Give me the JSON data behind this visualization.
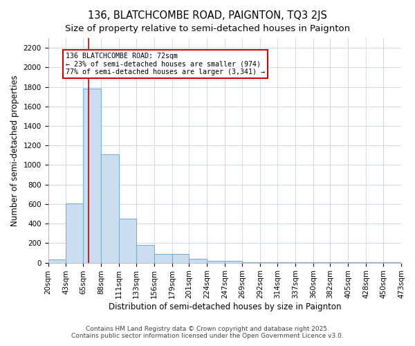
{
  "title": "136, BLATCHCOMBE ROAD, PAIGNTON, TQ3 2JS",
  "subtitle": "Size of property relative to semi-detached houses in Paignton",
  "xlabel": "Distribution of semi-detached houses by size in Paignton",
  "ylabel": "Number of semi-detached properties",
  "bin_labels": [
    "20sqm",
    "43sqm",
    "65sqm",
    "88sqm",
    "111sqm",
    "133sqm",
    "156sqm",
    "179sqm",
    "201sqm",
    "224sqm",
    "247sqm",
    "269sqm",
    "292sqm",
    "314sqm",
    "337sqm",
    "360sqm",
    "382sqm",
    "405sqm",
    "428sqm",
    "450sqm",
    "473sqm"
  ],
  "bar_values": [
    30,
    610,
    1780,
    1110,
    450,
    180,
    90,
    90,
    40,
    20,
    20,
    5,
    5,
    5,
    3,
    2,
    2,
    2,
    2,
    2
  ],
  "bar_color": "#ccddf0",
  "bar_edge_color": "#7aadd4",
  "ylim": [
    0,
    2300
  ],
  "yticks": [
    0,
    200,
    400,
    600,
    800,
    1000,
    1200,
    1400,
    1600,
    1800,
    2000,
    2200
  ],
  "red_line_x": 72,
  "bin_edges": [
    20,
    43,
    65,
    88,
    111,
    133,
    156,
    179,
    201,
    224,
    247,
    269,
    292,
    314,
    337,
    360,
    382,
    405,
    428,
    450,
    473
  ],
  "annotation_title": "136 BLATCHCOMBE ROAD: 72sqm",
  "annotation_line1": "← 23% of semi-detached houses are smaller (974)",
  "annotation_line2": "77% of semi-detached houses are larger (3,341) →",
  "annotation_color": "#cc0000",
  "footer1": "Contains HM Land Registry data © Crown copyright and database right 2025.",
  "footer2": "Contains public sector information licensed under the Open Government Licence v3.0.",
  "background_color": "#ffffff",
  "grid_color": "#d0d8e8",
  "title_fontsize": 10.5,
  "subtitle_fontsize": 9.5,
  "axis_label_fontsize": 8.5,
  "tick_fontsize": 7.5,
  "footer_fontsize": 6.5
}
